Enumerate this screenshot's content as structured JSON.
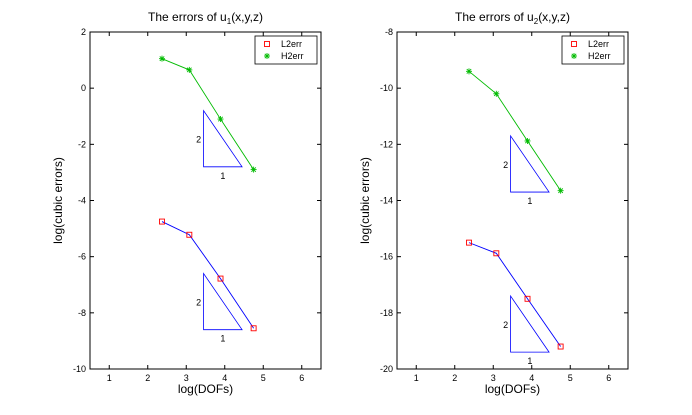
{
  "chart_data": [
    {
      "type": "line",
      "title_main": "The errors of u",
      "title_sub": "1",
      "title_tail": "(x,y,z)",
      "xlabel": "log(DOFs)",
      "ylabel": "log(cubic errors)",
      "xlim": [
        0.5,
        6.5
      ],
      "ylim": [
        -10,
        2
      ],
      "xticks": [
        1,
        2,
        3,
        4,
        5,
        6
      ],
      "yticks": [
        -10,
        -8,
        -6,
        -4,
        -2,
        0,
        2
      ],
      "grid": false,
      "legend_position": "top-right",
      "series": [
        {
          "name": "L2err",
          "color": "#0000ff",
          "marker_color": "#ff0000",
          "marker": "square",
          "x": [
            2.37,
            3.08,
            3.89,
            4.75
          ],
          "y": [
            -4.75,
            -5.22,
            -6.78,
            -8.55
          ]
        },
        {
          "name": "H2err",
          "color": "#00bb00",
          "marker_color": "#00bb00",
          "marker": "star",
          "x": [
            2.37,
            3.08,
            3.89,
            4.75
          ],
          "y": [
            1.05,
            0.65,
            -1.1,
            -2.9
          ]
        }
      ],
      "slope_triangles": [
        {
          "x0": 3.45,
          "x1": 4.45,
          "y_bottom": -2.8,
          "y_top": -0.8,
          "rise_label": "2",
          "run_label": "1"
        },
        {
          "x0": 3.45,
          "x1": 4.45,
          "y_bottom": -8.6,
          "y_top": -6.6,
          "rise_label": "2",
          "run_label": "1"
        }
      ]
    },
    {
      "type": "line",
      "title_main": "The errors of u",
      "title_sub": "2",
      "title_tail": "(x,y,z)",
      "xlabel": "log(DOFs)",
      "ylabel": "log(cubic errors)",
      "xlim": [
        0.5,
        6.5
      ],
      "ylim": [
        -20,
        -8
      ],
      "xticks": [
        1,
        2,
        3,
        4,
        5,
        6
      ],
      "yticks": [
        -20,
        -18,
        -16,
        -14,
        -12,
        -10,
        -8
      ],
      "grid": false,
      "legend_position": "top-right",
      "series": [
        {
          "name": "L2err",
          "color": "#0000ff",
          "marker_color": "#ff0000",
          "marker": "square",
          "x": [
            2.37,
            3.08,
            3.89,
            4.75
          ],
          "y": [
            -15.5,
            -15.88,
            -17.5,
            -19.2
          ]
        },
        {
          "name": "H2err",
          "color": "#00bb00",
          "marker_color": "#00bb00",
          "marker": "star",
          "x": [
            2.37,
            3.08,
            3.89,
            4.75
          ],
          "y": [
            -9.4,
            -10.2,
            -11.88,
            -13.65
          ]
        }
      ],
      "slope_triangles": [
        {
          "x0": 3.45,
          "x1": 4.45,
          "y_bottom": -13.7,
          "y_top": -11.7,
          "rise_label": "2",
          "run_label": "1"
        },
        {
          "x0": 3.45,
          "x1": 4.45,
          "y_bottom": -19.4,
          "y_top": -17.4,
          "rise_label": "2",
          "run_label": "1"
        }
      ]
    }
  ]
}
